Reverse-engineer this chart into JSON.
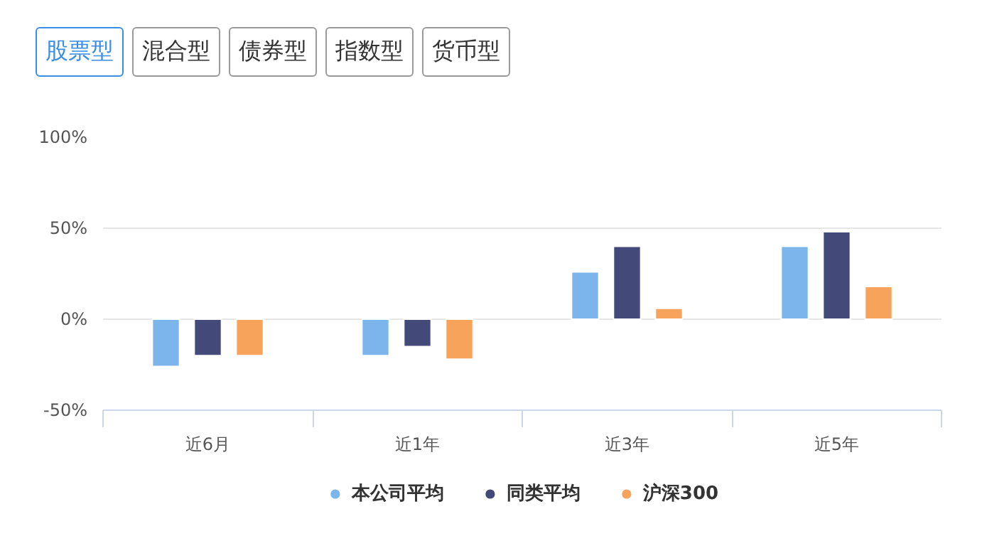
{
  "chart_data": {
    "type": "bar",
    "annotations": [
      "股票型",
      "混合型",
      "债券型",
      "指数型",
      "货币型"
    ],
    "categories": [
      "近6月",
      "近1年",
      "近3年",
      "近5年"
    ],
    "series": [
      {
        "name": "本公司平均",
        "color": "#7cb5ec",
        "values": [
          -26,
          -20,
          26,
          40
        ]
      },
      {
        "name": "同类平均",
        "color": "#434978",
        "values": [
          -20,
          -15,
          40,
          48
        ]
      },
      {
        "name": "沪深300",
        "color": "#f7a35c",
        "values": [
          -20,
          -22,
          6,
          18
        ]
      }
    ],
    "ylim": [
      -50,
      100
    ],
    "yticks": [
      {
        "value": -50,
        "label": "-50%"
      },
      {
        "value": 0,
        "label": "0%"
      },
      {
        "value": 50,
        "label": "50%"
      },
      {
        "value": 100,
        "label": "100%"
      }
    ],
    "grid": "y",
    "legend": "bottom"
  }
}
